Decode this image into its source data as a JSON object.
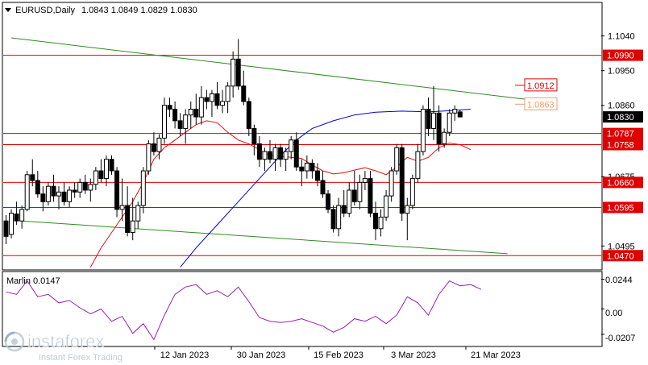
{
  "header": {
    "symbol": "EURUSD,Daily",
    "ohlc": "1.0843 1.0849 1.0829 1.0830"
  },
  "indicator": {
    "label": "Marlin 0.0147",
    "ticks": [
      "0.0244",
      "0.00",
      "-0.0207"
    ]
  },
  "watermark": {
    "brand": "instaforex",
    "tagline": "Instant Forex Trading"
  },
  "colors": {
    "bull": "#ffffff",
    "bear": "#000000",
    "level": "#e00000",
    "level_label_bg": "#e00000",
    "fast_ma": "#dd1111",
    "slow_ma": "#0000cc",
    "channel": "#2e8b22",
    "marlin": "#9a1fb5",
    "price_tag_bg": "#000000",
    "target_upper": "#e00000",
    "target_lower": "#f29a6e"
  },
  "chart_data": {
    "type": "candlestick",
    "symbol": "EURUSD",
    "timeframe": "Daily",
    "price_range": [
      1.0435,
      1.1125
    ],
    "x_tick_labels": [
      "12 Jan 2023",
      "30 Jan 2023",
      "15 Feb 2023",
      "3 Mar 2023",
      "21 Mar 2023"
    ],
    "price_ticks": [
      {
        "value": 1.104,
        "label": "1.1040"
      },
      {
        "value": 1.095,
        "label": "1.0950"
      },
      {
        "value": 1.086,
        "label": "1.0860"
      },
      {
        "value": 1.0675,
        "label": "1.0675"
      },
      {
        "value": 1.0495,
        "label": "1.0495"
      }
    ],
    "levels": [
      {
        "value": 1.099,
        "label": "1.0990"
      },
      {
        "value": 1.0787,
        "label": "1.0787"
      },
      {
        "value": 1.0758,
        "label": "1.0758"
      },
      {
        "value": 1.066,
        "label": "1.0660"
      },
      {
        "value": 1.0595,
        "label": "1.0595"
      },
      {
        "value": 1.047,
        "label": "1.0470"
      }
    ],
    "current_price": {
      "value": 1.083,
      "label": "1.0830"
    },
    "targets": [
      {
        "value": 1.0912,
        "label": "1.0912"
      },
      {
        "value": 1.0863,
        "label": "1.0863"
      }
    ],
    "candles": [
      [
        1.056,
        1.0575,
        1.05,
        1.052
      ],
      [
        1.0525,
        1.059,
        1.0515,
        1.058
      ],
      [
        1.0578,
        1.061,
        1.055,
        1.056
      ],
      [
        1.056,
        1.06,
        1.054,
        1.059
      ],
      [
        1.059,
        1.069,
        1.0585,
        1.068
      ],
      [
        1.068,
        1.072,
        1.065,
        1.0665
      ],
      [
        1.0665,
        1.069,
        1.062,
        1.063
      ],
      [
        1.063,
        1.065,
        1.0585,
        1.061
      ],
      [
        1.061,
        1.066,
        1.06,
        1.065
      ],
      [
        1.065,
        1.068,
        1.061,
        1.0625
      ],
      [
        1.0625,
        1.065,
        1.059,
        1.0635
      ],
      [
        1.0635,
        1.066,
        1.06,
        1.061
      ],
      [
        1.061,
        1.065,
        1.0595,
        1.064
      ],
      [
        1.064,
        1.066,
        1.062,
        1.0635
      ],
      [
        1.0635,
        1.067,
        1.062,
        1.066
      ],
      [
        1.066,
        1.068,
        1.063,
        1.064
      ],
      [
        1.064,
        1.067,
        1.061,
        1.0655
      ],
      [
        1.0655,
        1.07,
        1.064,
        1.069
      ],
      [
        1.069,
        1.072,
        1.066,
        1.067
      ],
      [
        1.067,
        1.073,
        1.065,
        1.072
      ],
      [
        1.072,
        1.073,
        1.068,
        1.069
      ],
      [
        1.069,
        1.07,
        1.057,
        1.059
      ],
      [
        1.059,
        1.067,
        1.056,
        1.06
      ],
      [
        1.06,
        1.065,
        1.052,
        1.053
      ],
      [
        1.053,
        1.062,
        1.051,
        1.056
      ],
      [
        1.056,
        1.061,
        1.054,
        1.06
      ],
      [
        1.06,
        1.07,
        1.058,
        1.069
      ],
      [
        1.069,
        1.077,
        1.068,
        1.076
      ],
      [
        1.076,
        1.079,
        1.073,
        1.074
      ],
      [
        1.074,
        1.0785,
        1.072,
        1.0775
      ],
      [
        1.0775,
        1.088,
        1.076,
        1.086
      ],
      [
        1.086,
        1.088,
        1.083,
        1.085
      ],
      [
        1.085,
        1.087,
        1.08,
        1.082
      ],
      [
        1.082,
        1.084,
        1.078,
        1.08
      ],
      [
        1.08,
        1.085,
        1.076,
        1.0835
      ],
      [
        1.0835,
        1.087,
        1.08,
        1.085
      ],
      [
        1.085,
        1.089,
        1.081,
        1.083
      ],
      [
        1.083,
        1.091,
        1.081,
        1.088
      ],
      [
        1.088,
        1.09,
        1.085,
        1.087
      ],
      [
        1.087,
        1.09,
        1.083,
        1.089
      ],
      [
        1.089,
        1.092,
        1.085,
        1.086
      ],
      [
        1.086,
        1.09,
        1.084,
        1.087
      ],
      [
        1.087,
        1.092,
        1.084,
        1.091
      ],
      [
        1.091,
        1.1,
        1.088,
        1.098
      ],
      [
        1.098,
        1.1032,
        1.09,
        1.091
      ],
      [
        1.091,
        1.095,
        1.086,
        1.087
      ],
      [
        1.087,
        1.088,
        1.078,
        1.08
      ],
      [
        1.08,
        1.081,
        1.073,
        1.076
      ],
      [
        1.076,
        1.078,
        1.07,
        1.072
      ],
      [
        1.072,
        1.075,
        1.069,
        1.074
      ],
      [
        1.074,
        1.077,
        1.071,
        1.072
      ],
      [
        1.072,
        1.076,
        1.069,
        1.075
      ],
      [
        1.075,
        1.076,
        1.07,
        1.072
      ],
      [
        1.072,
        1.075,
        1.069,
        1.074
      ],
      [
        1.074,
        1.078,
        1.072,
        1.077
      ],
      [
        1.077,
        1.079,
        1.069,
        1.07
      ],
      [
        1.07,
        1.072,
        1.065,
        1.069
      ],
      [
        1.069,
        1.073,
        1.067,
        1.071
      ],
      [
        1.071,
        1.072,
        1.067,
        1.069
      ],
      [
        1.069,
        1.071,
        1.065,
        1.0665
      ],
      [
        1.0665,
        1.069,
        1.062,
        1.063
      ],
      [
        1.063,
        1.064,
        1.058,
        1.059
      ],
      [
        1.059,
        1.06,
        1.053,
        1.054
      ],
      [
        1.054,
        1.062,
        1.052,
        1.06
      ],
      [
        1.06,
        1.064,
        1.057,
        1.058
      ],
      [
        1.058,
        1.066,
        1.057,
        1.064
      ],
      [
        1.064,
        1.069,
        1.06,
        1.061
      ],
      [
        1.061,
        1.068,
        1.059,
        1.066
      ],
      [
        1.066,
        1.069,
        1.064,
        1.067
      ],
      [
        1.067,
        1.069,
        1.057,
        1.058
      ],
      [
        1.058,
        1.061,
        1.051,
        1.054
      ],
      [
        1.054,
        1.059,
        1.052,
        1.057
      ],
      [
        1.057,
        1.064,
        1.056,
        1.0625
      ],
      [
        1.0625,
        1.07,
        1.061,
        1.069
      ],
      [
        1.069,
        1.076,
        1.068,
        1.075
      ],
      [
        1.075,
        1.076,
        1.056,
        1.058
      ],
      [
        1.058,
        1.062,
        1.051,
        1.06
      ],
      [
        1.06,
        1.068,
        1.059,
        1.067
      ],
      [
        1.067,
        1.076,
        1.066,
        1.074
      ],
      [
        1.074,
        1.086,
        1.073,
        1.085
      ],
      [
        1.085,
        1.088,
        1.078,
        1.08
      ],
      [
        1.08,
        1.091,
        1.077,
        1.084
      ],
      [
        1.084,
        1.086,
        1.074,
        1.076
      ],
      [
        1.076,
        1.08,
        1.075,
        1.079
      ],
      [
        1.079,
        1.085,
        1.078,
        1.084
      ],
      [
        1.084,
        1.086,
        1.082,
        1.085
      ],
      [
        1.0843,
        1.0849,
        1.0829,
        1.083
      ]
    ],
    "fast_ma": [
      [
        16,
        1.044
      ],
      [
        18,
        1.049
      ],
      [
        20,
        1.053
      ],
      [
        22,
        1.057
      ],
      [
        24,
        1.061
      ],
      [
        26,
        1.066
      ],
      [
        28,
        1.072
      ],
      [
        30,
        1.075
      ],
      [
        32,
        1.077
      ],
      [
        34,
        1.079
      ],
      [
        36,
        1.081
      ],
      [
        38,
        1.082
      ],
      [
        40,
        1.0815
      ],
      [
        42,
        1.079
      ],
      [
        44,
        1.077
      ],
      [
        46,
        1.076
      ],
      [
        48,
        1.0745
      ],
      [
        50,
        1.073
      ],
      [
        52,
        1.0728
      ],
      [
        54,
        1.0725
      ],
      [
        56,
        1.0722
      ],
      [
        58,
        1.0705
      ],
      [
        60,
        1.069
      ],
      [
        62,
        1.0682
      ],
      [
        64,
        1.0685
      ],
      [
        66,
        1.0692
      ],
      [
        68,
        1.0698
      ],
      [
        70,
        1.069
      ],
      [
        72,
        1.068
      ],
      [
        74,
        1.07
      ],
      [
        76,
        1.0725
      ],
      [
        78,
        1.0715
      ],
      [
        80,
        1.0725
      ],
      [
        82,
        1.075
      ],
      [
        84,
        1.0762
      ],
      [
        86,
        1.0758
      ],
      [
        88,
        1.0745
      ]
    ],
    "slow_ma": [
      [
        33,
        1.044
      ],
      [
        36,
        1.049
      ],
      [
        40,
        1.055
      ],
      [
        44,
        1.061
      ],
      [
        48,
        1.067
      ],
      [
        52,
        1.073
      ],
      [
        55,
        1.077
      ],
      [
        58,
        1.08
      ],
      [
        62,
        1.082
      ],
      [
        66,
        1.0835
      ],
      [
        70,
        1.0842
      ],
      [
        75,
        1.0845
      ],
      [
        80,
        1.0843
      ],
      [
        84,
        1.0846
      ],
      [
        88,
        1.085
      ]
    ],
    "channel_upper": [
      [
        1,
        1.1035
      ],
      [
        102,
        1.087
      ]
    ],
    "channel_lower": [
      [
        3,
        1.056
      ],
      [
        95,
        1.0475
      ]
    ],
    "marlin": {
      "range": [
        -0.03,
        0.03
      ],
      "values": [
        [
          0,
          0.014
        ],
        [
          2,
          0.012
        ],
        [
          4,
          0.023
        ],
        [
          6,
          0.01
        ],
        [
          8,
          0.012
        ],
        [
          10,
          0.005
        ],
        [
          12,
          0.007
        ],
        [
          14,
          0.001
        ],
        [
          16,
          -0.004
        ],
        [
          18,
          0.0
        ],
        [
          20,
          -0.01
        ],
        [
          22,
          -0.006
        ],
        [
          24,
          -0.02
        ],
        [
          26,
          -0.012
        ],
        [
          28,
          -0.025
        ],
        [
          30,
          -0.005
        ],
        [
          32,
          0.012
        ],
        [
          34,
          0.018
        ],
        [
          36,
          0.02
        ],
        [
          38,
          0.012
        ],
        [
          40,
          0.015
        ],
        [
          42,
          0.01
        ],
        [
          44,
          0.018
        ],
        [
          46,
          0.006
        ],
        [
          48,
          -0.007
        ],
        [
          50,
          -0.01
        ],
        [
          52,
          -0.011
        ],
        [
          54,
          -0.01
        ],
        [
          56,
          -0.008
        ],
        [
          58,
          -0.011
        ],
        [
          60,
          -0.014
        ],
        [
          62,
          -0.019
        ],
        [
          64,
          -0.015
        ],
        [
          66,
          -0.008
        ],
        [
          68,
          -0.01
        ],
        [
          70,
          -0.006
        ],
        [
          72,
          -0.012
        ],
        [
          74,
          -0.005
        ],
        [
          76,
          0.01
        ],
        [
          78,
          0.005
        ],
        [
          80,
          -0.005
        ],
        [
          82,
          0.012
        ],
        [
          84,
          0.023
        ],
        [
          86,
          0.019
        ],
        [
          88,
          0.02
        ],
        [
          90,
          0.016
        ]
      ]
    }
  }
}
